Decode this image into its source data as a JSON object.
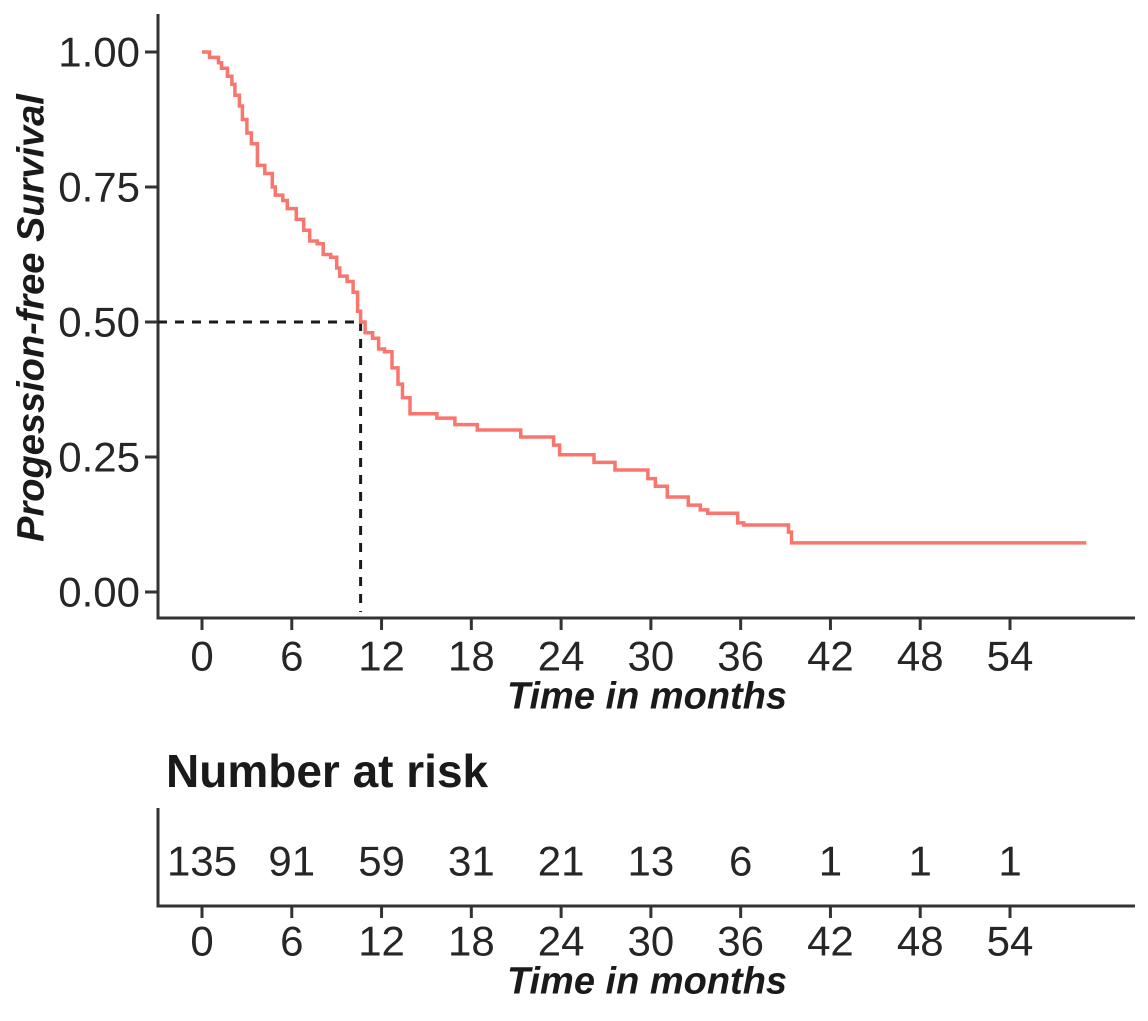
{
  "colors": {
    "curve": "#F8766D",
    "axis": "#333333",
    "text": "#262626",
    "median_line": "#1a1a1a",
    "background": "#ffffff"
  },
  "chart_data": {
    "type": "line",
    "subtype": "kaplan-meier-step-curve",
    "title": "",
    "ylabel": "Progession-free Survival",
    "xlabel": "Time in months",
    "xlim": [
      0,
      59.5
    ],
    "ylim": [
      0,
      1
    ],
    "x_ticks": [
      0,
      6,
      12,
      18,
      24,
      30,
      36,
      42,
      48,
      54
    ],
    "y_ticks": [
      1.0,
      0.75,
      0.5,
      0.25,
      0.0
    ],
    "y_tick_labels": [
      "1.00",
      "0.75",
      "0.50",
      "0.25",
      "0.00"
    ],
    "grid": false,
    "legend": "none",
    "median": {
      "time_months": 10.6,
      "survival": 0.5,
      "line_style": "dashed"
    },
    "series": [
      {
        "name": "Progression-free survival",
        "color": "#F8766D",
        "steps": [
          [
            0,
            1.0
          ],
          [
            0.5,
            0.99
          ],
          [
            1.1,
            0.98
          ],
          [
            1.3,
            0.97
          ],
          [
            1.7,
            0.955
          ],
          [
            2.0,
            0.94
          ],
          [
            2.2,
            0.92
          ],
          [
            2.5,
            0.9
          ],
          [
            2.7,
            0.875
          ],
          [
            3.0,
            0.85
          ],
          [
            3.3,
            0.83
          ],
          [
            3.7,
            0.79
          ],
          [
            4.2,
            0.775
          ],
          [
            4.7,
            0.75
          ],
          [
            4.9,
            0.735
          ],
          [
            5.4,
            0.725
          ],
          [
            5.7,
            0.71
          ],
          [
            6.3,
            0.69
          ],
          [
            6.8,
            0.67
          ],
          [
            7.2,
            0.65
          ],
          [
            7.7,
            0.645
          ],
          [
            8.1,
            0.625
          ],
          [
            8.6,
            0.62
          ],
          [
            9.0,
            0.6
          ],
          [
            9.2,
            0.585
          ],
          [
            9.7,
            0.575
          ],
          [
            10.1,
            0.555
          ],
          [
            10.4,
            0.52
          ],
          [
            10.6,
            0.5
          ],
          [
            10.9,
            0.48
          ],
          [
            11.4,
            0.47
          ],
          [
            11.8,
            0.45
          ],
          [
            12.2,
            0.445
          ],
          [
            12.7,
            0.415
          ],
          [
            13.1,
            0.385
          ],
          [
            13.4,
            0.36
          ],
          [
            13.9,
            0.33
          ],
          [
            15.7,
            0.322
          ],
          [
            16.9,
            0.31
          ],
          [
            18.4,
            0.3
          ],
          [
            21.3,
            0.287
          ],
          [
            23.5,
            0.272
          ],
          [
            23.9,
            0.254
          ],
          [
            26.2,
            0.24
          ],
          [
            27.6,
            0.226
          ],
          [
            29.8,
            0.21
          ],
          [
            30.3,
            0.196
          ],
          [
            31.1,
            0.176
          ],
          [
            32.5,
            0.161
          ],
          [
            33.3,
            0.152
          ],
          [
            33.8,
            0.146
          ],
          [
            35.8,
            0.128
          ],
          [
            36.2,
            0.124
          ],
          [
            39.2,
            0.111
          ],
          [
            39.4,
            0.091
          ],
          [
            59.1,
            0.091
          ]
        ]
      }
    ]
  },
  "risk_table": {
    "title": "Number at risk",
    "xlabel": "Time in months",
    "times": [
      0,
      6,
      12,
      18,
      24,
      30,
      36,
      42,
      48,
      54
    ],
    "at_risk": [
      135,
      91,
      59,
      31,
      21,
      13,
      6,
      1,
      1,
      1
    ]
  }
}
